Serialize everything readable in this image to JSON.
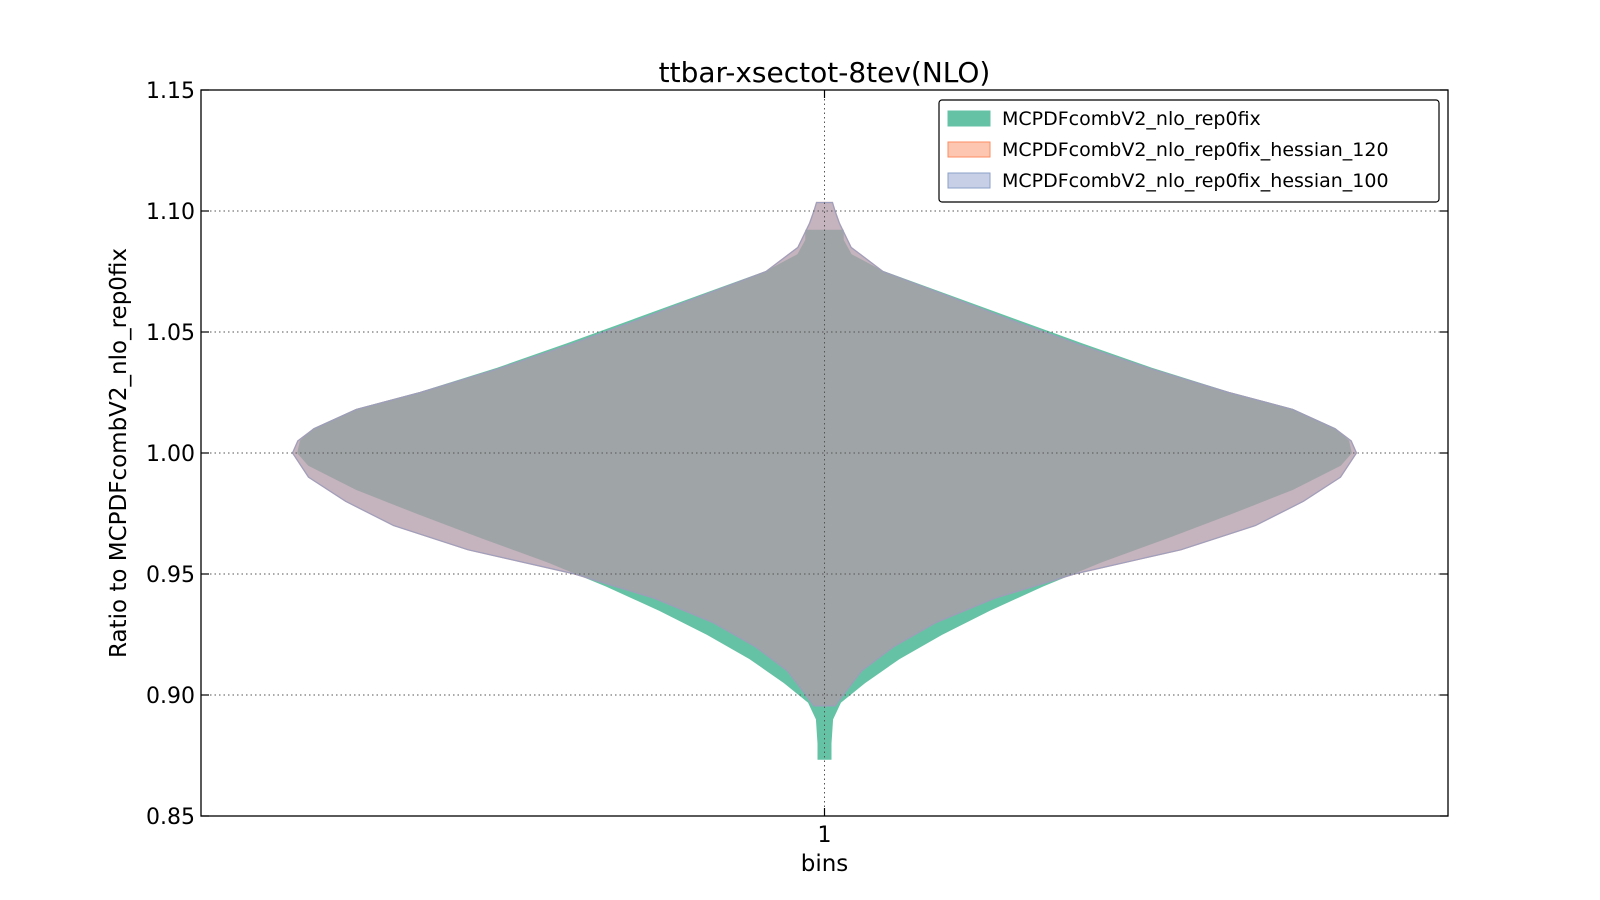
{
  "chart_data": {
    "type": "violin",
    "title": "ttbar-xsectot-8tev(NLO)",
    "xlabel": "bins",
    "ylabel": "Ratio to MCPDFcombV2_nlo_rep0fix",
    "ylim": [
      0.85,
      1.15
    ],
    "yticks": [
      0.85,
      0.9,
      0.95,
      1.0,
      1.05,
      1.1,
      1.15
    ],
    "ytick_labels": [
      "0.85",
      "0.90",
      "0.95",
      "1.00",
      "1.05",
      "1.10",
      "1.15"
    ],
    "categories": [
      "1"
    ],
    "grid": true,
    "legend_position": "top-right",
    "series": [
      {
        "name": "MCPDFcombV2_nlo_rep0fix",
        "color": "#66c2a5",
        "edge": "#66c2a5",
        "profile": [
          [
            0.8735,
            0.012
          ],
          [
            0.88,
            0.012
          ],
          [
            0.89,
            0.015
          ],
          [
            0.897,
            0.03
          ],
          [
            0.905,
            0.075
          ],
          [
            0.915,
            0.14
          ],
          [
            0.925,
            0.22
          ],
          [
            0.935,
            0.31
          ],
          [
            0.945,
            0.41
          ],
          [
            0.955,
            0.52
          ],
          [
            0.965,
            0.645
          ],
          [
            0.975,
            0.765
          ],
          [
            0.985,
            0.88
          ],
          [
            0.995,
            0.97
          ],
          [
            1.0,
            0.99
          ],
          [
            1.005,
            0.985
          ],
          [
            1.01,
            0.96
          ],
          [
            1.018,
            0.88
          ],
          [
            1.025,
            0.76
          ],
          [
            1.035,
            0.615
          ],
          [
            1.045,
            0.485
          ],
          [
            1.055,
            0.36
          ],
          [
            1.065,
            0.235
          ],
          [
            1.075,
            0.11
          ],
          [
            1.082,
            0.05
          ],
          [
            1.088,
            0.035
          ],
          [
            1.092,
            0.035
          ]
        ]
      },
      {
        "name": "MCPDFcombV2_nlo_rep0fix_hessian_120",
        "color": "#fc8d62",
        "edge": "#fc8d62",
        "profile": [
          [
            0.8955,
            0.02
          ],
          [
            0.9,
            0.035
          ],
          [
            0.91,
            0.07
          ],
          [
            0.92,
            0.13
          ],
          [
            0.93,
            0.21
          ],
          [
            0.94,
            0.32
          ],
          [
            0.95,
            0.47
          ],
          [
            0.96,
            0.67
          ],
          [
            0.97,
            0.81
          ],
          [
            0.98,
            0.9
          ],
          [
            0.99,
            0.97
          ],
          [
            1.0,
            1.0
          ],
          [
            1.005,
            0.99
          ],
          [
            1.01,
            0.96
          ],
          [
            1.018,
            0.88
          ],
          [
            1.025,
            0.76
          ],
          [
            1.035,
            0.61
          ],
          [
            1.045,
            0.475
          ],
          [
            1.055,
            0.35
          ],
          [
            1.065,
            0.23
          ],
          [
            1.075,
            0.11
          ],
          [
            1.085,
            0.05
          ],
          [
            1.095,
            0.028
          ],
          [
            1.1,
            0.02
          ],
          [
            1.1035,
            0.015
          ]
        ]
      },
      {
        "name": "MCPDFcombV2_nlo_rep0fix_hessian_100",
        "color": "#8da0cb",
        "edge": "#8da0cb",
        "profile": [
          [
            0.8955,
            0.02
          ],
          [
            0.9,
            0.035
          ],
          [
            0.91,
            0.07
          ],
          [
            0.92,
            0.13
          ],
          [
            0.93,
            0.21
          ],
          [
            0.94,
            0.32
          ],
          [
            0.95,
            0.47
          ],
          [
            0.96,
            0.67
          ],
          [
            0.97,
            0.81
          ],
          [
            0.98,
            0.9
          ],
          [
            0.99,
            0.97
          ],
          [
            1.0,
            1.0
          ],
          [
            1.005,
            0.99
          ],
          [
            1.01,
            0.96
          ],
          [
            1.018,
            0.88
          ],
          [
            1.025,
            0.76
          ],
          [
            1.035,
            0.61
          ],
          [
            1.045,
            0.475
          ],
          [
            1.055,
            0.35
          ],
          [
            1.065,
            0.23
          ],
          [
            1.075,
            0.11
          ],
          [
            1.085,
            0.05
          ],
          [
            1.095,
            0.028
          ],
          [
            1.1,
            0.02
          ],
          [
            1.1035,
            0.015
          ]
        ]
      }
    ]
  }
}
